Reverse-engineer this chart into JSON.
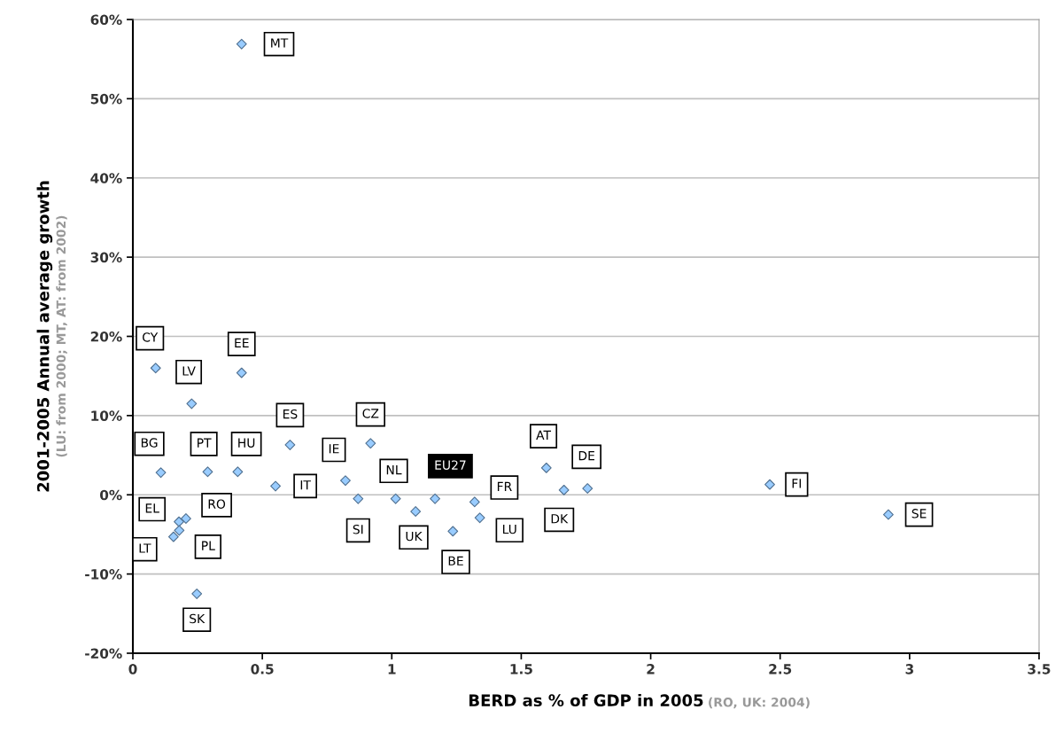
{
  "chart_data": {
    "type": "scatter",
    "xlabel": "BERD as % of GDP in 2005",
    "ylabel": "2001-2005 Annual average growth",
    "annotations": [
      "(RO, UK: 2004)",
      "(LU: from 2000; MT, AT: from 2002)",
      {
        "text": "MT",
        "x": 0.42,
        "y": 56.9
      },
      {
        "text": "CY",
        "x": 0.088,
        "y": 16.0
      },
      {
        "text": "EE",
        "x": 0.42,
        "y": 15.4
      },
      {
        "text": "LV",
        "x": 0.227,
        "y": 11.5
      },
      {
        "text": "ES",
        "x": 0.607,
        "y": 6.3
      },
      {
        "text": "CZ",
        "x": 0.918,
        "y": 6.5
      },
      {
        "text": "BG",
        "x": 0.108,
        "y": 2.8
      },
      {
        "text": "PT",
        "x": 0.289,
        "y": 2.9
      },
      {
        "text": "HU",
        "x": 0.405,
        "y": 2.9
      },
      {
        "text": "IT",
        "x": 0.551,
        "y": 1.1
      },
      {
        "text": "IE",
        "x": 0.821,
        "y": 1.8
      },
      {
        "text": "SI",
        "x": 0.87,
        "y": -0.5
      },
      {
        "text": "RO",
        "x": 0.205,
        "y": -3.0
      },
      {
        "text": "EL",
        "x": 0.178,
        "y": -3.4
      },
      {
        "text": "PL",
        "x": 0.179,
        "y": -4.5
      },
      {
        "text": "LT",
        "x": 0.157,
        "y": -5.3
      },
      {
        "text": "SK",
        "x": 0.247,
        "y": -12.5
      },
      {
        "text": "NL",
        "x": 1.015,
        "y": -0.5
      },
      {
        "text": "UK",
        "x": 1.092,
        "y": -2.1
      },
      {
        "text": "EU27",
        "x": 1.167,
        "y": -0.5
      },
      {
        "text": "BE",
        "x": 1.236,
        "y": -4.6
      },
      {
        "text": "FR",
        "x": 1.32,
        "y": -0.9
      },
      {
        "text": "LU",
        "x": 1.34,
        "y": -2.9
      },
      {
        "text": "AT",
        "x": 1.597,
        "y": 3.4
      },
      {
        "text": "DK",
        "x": 1.665,
        "y": 0.6
      },
      {
        "text": "DE",
        "x": 1.756,
        "y": 0.8
      },
      {
        "text": "FI",
        "x": 2.46,
        "y": 1.3
      },
      {
        "text": "SE",
        "x": 2.918,
        "y": -2.5
      }
    ],
    "x": [
      0.42,
      0.088,
      0.42,
      0.227,
      0.607,
      0.918,
      0.108,
      0.289,
      0.405,
      0.551,
      0.821,
      0.87,
      0.205,
      0.178,
      0.179,
      0.157,
      0.247,
      1.015,
      1.092,
      1.167,
      1.236,
      1.32,
      1.34,
      1.597,
      1.665,
      1.756,
      2.46,
      2.918
    ],
    "values": [
      56.9,
      16.0,
      15.4,
      11.5,
      6.3,
      6.5,
      2.8,
      2.9,
      2.9,
      1.1,
      1.8,
      -0.5,
      -3.0,
      -3.4,
      -4.5,
      -5.3,
      -12.5,
      -0.5,
      -2.1,
      -0.5,
      -4.6,
      -0.9,
      -2.9,
      3.4,
      0.6,
      0.8,
      1.3,
      -2.5
    ],
    "color": "#99ccff",
    "marker": "diamond",
    "xlim": [
      0,
      3.5
    ],
    "xticks": [
      0,
      0.5,
      1,
      1.5,
      2,
      2.5,
      3,
      3.5
    ],
    "ylim": [
      -20,
      60
    ],
    "yticks": [
      {
        "value": -20,
        "label": "-20%"
      },
      {
        "value": -10,
        "label": "-10%"
      },
      {
        "value": 0,
        "label": "0%"
      },
      {
        "value": 10,
        "label": "10%"
      },
      {
        "value": 20,
        "label": "20%"
      },
      {
        "value": 30,
        "label": "30%"
      },
      {
        "value": 40,
        "label": "40%"
      },
      {
        "value": 50,
        "label": "50%"
      },
      {
        "value": 60,
        "label": "60%"
      }
    ],
    "grid": "y"
  }
}
